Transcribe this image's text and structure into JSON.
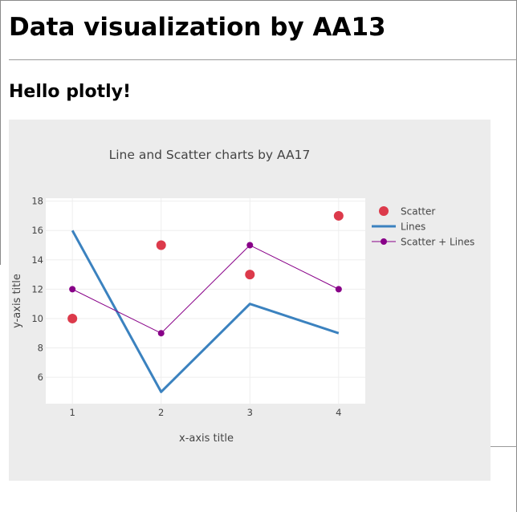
{
  "page": {
    "title": "Data visualization by AA13",
    "subtitle": "Hello plotly!"
  },
  "chart_data": {
    "type": "scatter",
    "title": "Line and Scatter charts by AA17",
    "xlabel": "x-axis title",
    "ylabel": "y-axis title",
    "xlim": [
      0.7,
      4.3
    ],
    "ylim": [
      4.2,
      18.2
    ],
    "xticks": [
      1,
      2,
      3,
      4
    ],
    "yticks": [
      6,
      8,
      10,
      12,
      14,
      16,
      18
    ],
    "grid": true,
    "legend_position": "top-right, outside plot",
    "colors": {
      "paper": "#ececec",
      "plot": "#ffffff",
      "grid": "#eeeeee"
    },
    "series": [
      {
        "name": "Scatter",
        "mode": "markers",
        "color": "#dc3a4b",
        "x": [
          1,
          2,
          3,
          4
        ],
        "y": [
          10,
          15,
          13,
          17
        ]
      },
      {
        "name": "Lines",
        "mode": "lines",
        "color": "#3b82bf",
        "x": [
          1,
          2,
          3,
          4
        ],
        "y": [
          16,
          5,
          11,
          9
        ]
      },
      {
        "name": "Scatter + Lines",
        "mode": "lines+markers",
        "color": "#880088",
        "x": [
          1,
          2,
          3,
          4
        ],
        "y": [
          12,
          9,
          15,
          12
        ]
      }
    ]
  }
}
